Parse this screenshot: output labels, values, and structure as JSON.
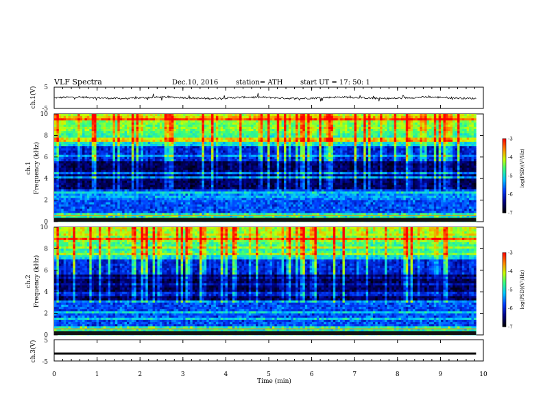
{
  "header": {
    "title": "VLF  Spectra",
    "date": "Dec.10, 2016",
    "station": "station= ATH",
    "start": "start  UT  =    17: 50: 1"
  },
  "chart_data": [
    {
      "type": "line",
      "name": "ch1-waveform",
      "ylabel": "ch.1(V)",
      "ylim": [
        -5,
        5
      ],
      "yticks": [
        "5",
        "-5"
      ],
      "xlim": [
        0,
        10
      ],
      "mean_level": 0,
      "note_values": "noisy waveform around ~0 V with small spikes"
    },
    {
      "type": "heatmap",
      "name": "ch1-spectrogram",
      "ylabel": "ch.1\nFrequency (kHz)",
      "ylabel_line1": "ch.1",
      "ylabel_line2": "Frequency  (kHz)",
      "ylim": [
        0,
        10
      ],
      "yticks": [
        "0",
        "2",
        "4",
        "6",
        "8",
        "10"
      ],
      "colorbar": {
        "label": "log(PSD)(V²/Hz)",
        "range": [
          -7,
          -3
        ],
        "ticks": [
          "-3",
          "-4",
          "-5",
          "-6",
          "-7"
        ]
      }
    },
    {
      "type": "heatmap",
      "name": "ch2-spectrogram",
      "ylabel_line1": "ch.2",
      "ylabel_line2": "Frequency  (kHz)",
      "ylim": [
        0,
        10
      ],
      "yticks": [
        "0",
        "2",
        "4",
        "6",
        "8",
        "10"
      ],
      "colorbar": {
        "label": "log(PSD)(V²/Hz)",
        "range": [
          -7,
          -3
        ],
        "ticks": [
          "-3",
          "-4",
          "-5",
          "-6",
          "-7"
        ]
      }
    },
    {
      "type": "line",
      "name": "ch3-waveform",
      "ylabel": "ch.3(V)",
      "ylim": [
        -5,
        5
      ],
      "yticks": [
        "5",
        "-5"
      ],
      "xlim": [
        0,
        10
      ],
      "mean_level": -1.5
    }
  ],
  "xaxis": {
    "label": "Time  (min)",
    "ticks": [
      "0",
      "1",
      "2",
      "3",
      "4",
      "5",
      "6",
      "7",
      "8",
      "9",
      "10"
    ]
  }
}
